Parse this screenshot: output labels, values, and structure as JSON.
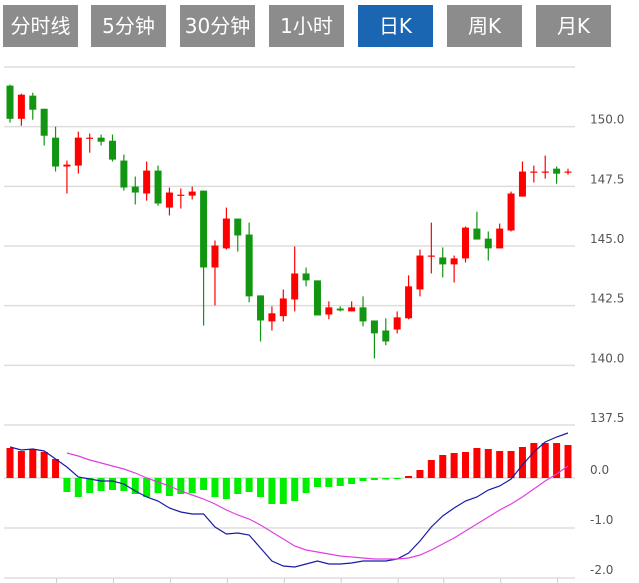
{
  "tabs": [
    {
      "label": "分时线",
      "active": false
    },
    {
      "label": "5分钟",
      "active": false
    },
    {
      "label": "30分钟",
      "active": false
    },
    {
      "label": "1小时",
      "active": false
    },
    {
      "label": "日K",
      "active": true
    },
    {
      "label": "周K",
      "active": false
    },
    {
      "label": "月K",
      "active": false
    }
  ],
  "colors": {
    "up": "#ff0000",
    "down": "#129612",
    "hist_down": "#00ee00",
    "dif": "#1a1aa8",
    "dea": "#e040e0",
    "tab_bg": "#8c8c8c",
    "tab_active": "#1a66b3"
  },
  "chart_data": [
    {
      "type": "candlestick",
      "title": "",
      "ylim": [
        137.5,
        152.5
      ],
      "yticks": [
        "150.0",
        "147.5",
        "145.0",
        "142.5",
        "140.0",
        "137.5"
      ],
      "grid": true,
      "ohlc": [
        [
          151.72,
          151.76,
          150.17,
          150.33
        ],
        [
          150.33,
          151.38,
          150.04,
          151.34
        ],
        [
          151.3,
          151.42,
          150.29,
          150.71
        ],
        [
          150.75,
          150.75,
          149.21,
          149.62
        ],
        [
          149.54,
          150.0,
          148.12,
          148.33
        ],
        [
          148.33,
          148.58,
          147.2,
          148.41
        ],
        [
          148.37,
          149.79,
          148.03,
          149.54
        ],
        [
          149.5,
          149.71,
          148.91,
          149.54
        ],
        [
          149.54,
          149.67,
          149.21,
          149.37
        ],
        [
          149.41,
          149.67,
          148.54,
          148.62
        ],
        [
          148.58,
          148.83,
          147.32,
          147.45
        ],
        [
          147.49,
          147.91,
          146.74,
          147.24
        ],
        [
          147.2,
          148.54,
          146.9,
          148.16
        ],
        [
          148.16,
          148.37,
          146.69,
          146.78
        ],
        [
          146.61,
          147.45,
          146.28,
          147.24
        ],
        [
          147.11,
          147.41,
          146.57,
          147.15
        ],
        [
          147.11,
          147.49,
          146.95,
          147.28
        ],
        [
          147.32,
          147.32,
          141.67,
          144.1
        ],
        [
          144.1,
          145.23,
          142.51,
          145.02
        ],
        [
          144.9,
          146.61,
          144.85,
          146.15
        ],
        [
          146.15,
          146.15,
          144.77,
          145.44
        ],
        [
          145.48,
          145.98,
          142.64,
          142.89
        ],
        [
          142.93,
          142.93,
          141.0,
          141.88
        ],
        [
          141.84,
          142.47,
          141.46,
          142.18
        ],
        [
          142.06,
          143.18,
          141.84,
          142.8
        ],
        [
          142.76,
          144.98,
          142.26,
          143.85
        ],
        [
          143.85,
          144.1,
          143.31,
          143.56
        ],
        [
          143.56,
          143.56,
          142.09,
          142.09
        ],
        [
          142.13,
          142.68,
          141.93,
          142.43
        ],
        [
          142.38,
          142.47,
          142.26,
          142.3
        ],
        [
          142.26,
          142.68,
          142.26,
          142.43
        ],
        [
          142.43,
          142.89,
          141.63,
          141.84
        ],
        [
          141.88,
          141.88,
          140.29,
          141.34
        ],
        [
          141.46,
          141.97,
          140.84,
          141.0
        ],
        [
          141.5,
          142.26,
          141.34,
          142.01
        ],
        [
          141.97,
          143.77,
          141.93,
          143.31
        ],
        [
          143.18,
          144.85,
          142.89,
          144.6
        ],
        [
          144.56,
          145.98,
          143.85,
          144.6
        ],
        [
          144.52,
          144.94,
          143.68,
          144.23
        ],
        [
          144.23,
          144.6,
          143.47,
          144.48
        ],
        [
          144.48,
          145.82,
          144.31,
          145.77
        ],
        [
          145.73,
          146.44,
          145.27,
          145.27
        ],
        [
          145.31,
          145.61,
          144.39,
          144.9
        ],
        [
          144.9,
          145.94,
          144.9,
          145.73
        ],
        [
          145.65,
          147.28,
          145.61,
          147.2
        ],
        [
          147.07,
          148.54,
          147.07,
          148.12
        ],
        [
          148.08,
          148.37,
          147.66,
          148.12
        ],
        [
          148.08,
          148.79,
          147.82,
          148.12
        ],
        [
          148.24,
          148.33,
          147.61,
          148.03
        ],
        [
          148.08,
          148.24,
          147.99,
          148.12
        ]
      ]
    },
    {
      "type": "macd",
      "ylim": [
        -2.0,
        1.06
      ],
      "yticks": [
        "0.0",
        "-1.0",
        "-2.0"
      ],
      "grid": true,
      "histogram": [
        0.6,
        0.54,
        0.58,
        0.52,
        0.38,
        -0.28,
        -0.38,
        -0.3,
        -0.26,
        -0.24,
        -0.26,
        -0.32,
        -0.38,
        -0.3,
        -0.36,
        -0.32,
        -0.3,
        -0.24,
        -0.38,
        -0.42,
        -0.32,
        -0.28,
        -0.38,
        -0.52,
        -0.52,
        -0.46,
        -0.3,
        -0.18,
        -0.18,
        -0.16,
        -0.12,
        -0.06,
        -0.04,
        -0.03,
        -0.02,
        0.04,
        0.16,
        0.36,
        0.46,
        0.5,
        0.52,
        0.6,
        0.58,
        0.54,
        0.54,
        0.62,
        0.7,
        0.7,
        0.7,
        0.66
      ],
      "dif": [
        0.62,
        0.56,
        0.58,
        0.54,
        0.38,
        0.22,
        0.02,
        -0.02,
        -0.06,
        -0.06,
        -0.12,
        -0.26,
        -0.38,
        -0.46,
        -0.6,
        -0.68,
        -0.72,
        -0.72,
        -0.98,
        -1.12,
        -1.1,
        -1.14,
        -1.4,
        -1.66,
        -1.76,
        -1.78,
        -1.72,
        -1.66,
        -1.72,
        -1.72,
        -1.7,
        -1.66,
        -1.66,
        -1.66,
        -1.62,
        -1.5,
        -1.26,
        -0.98,
        -0.76,
        -0.6,
        -0.46,
        -0.38,
        -0.24,
        -0.16,
        -0.02,
        0.26,
        0.52,
        0.72,
        0.82,
        0.9
      ],
      "dea": [
        null,
        null,
        null,
        null,
        null,
        0.5,
        0.44,
        0.36,
        0.3,
        0.24,
        0.18,
        0.1,
        0.0,
        -0.08,
        -0.16,
        -0.26,
        -0.34,
        -0.42,
        -0.52,
        -0.64,
        -0.74,
        -0.82,
        -0.94,
        -1.08,
        -1.22,
        -1.36,
        -1.44,
        -1.48,
        -1.52,
        -1.56,
        -1.58,
        -1.6,
        -1.62,
        -1.62,
        -1.62,
        -1.6,
        -1.54,
        -1.44,
        -1.32,
        -1.2,
        -1.06,
        -0.92,
        -0.78,
        -0.64,
        -0.52,
        -0.38,
        -0.22,
        -0.06,
        0.08,
        0.24
      ]
    }
  ]
}
